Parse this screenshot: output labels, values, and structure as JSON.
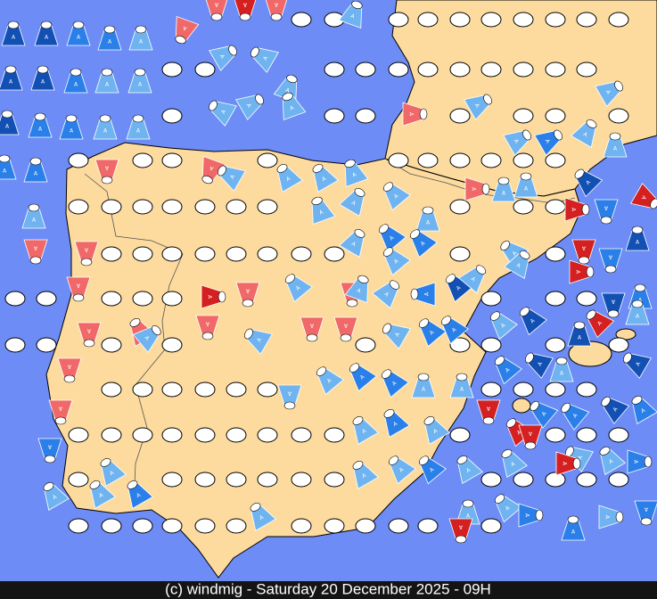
{
  "footer": {
    "caption": "(c) windmig - Saturday 20 December 2025 - 09H"
  },
  "marker_label": "A"
}
